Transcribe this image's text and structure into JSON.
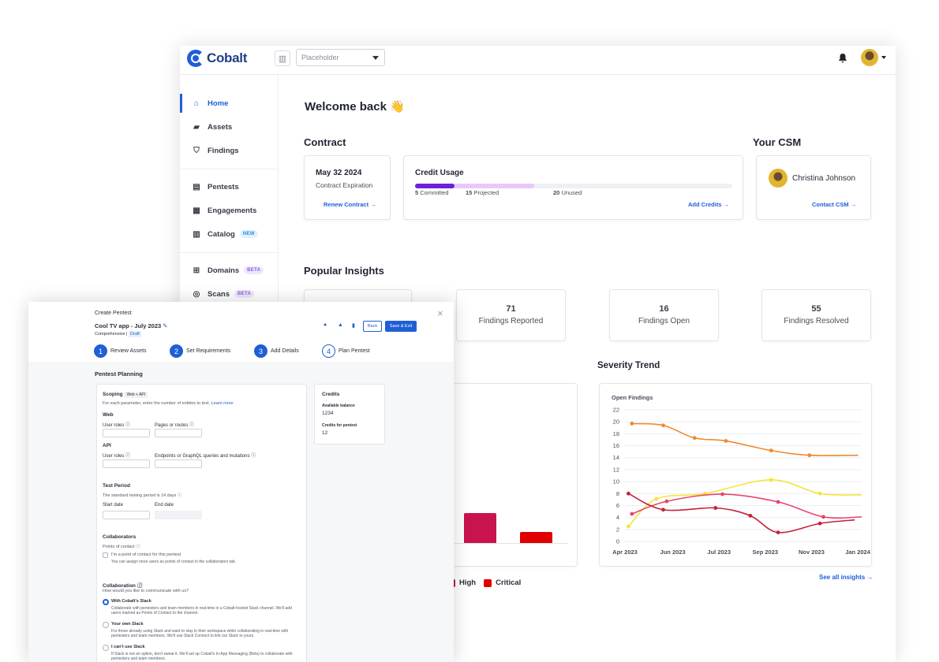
{
  "topbar": {
    "logo_text": "Cobalt",
    "org_placeholder": "Placeholder",
    "bell_icon": "bell-icon"
  },
  "sidebar": {
    "items": [
      {
        "label": "Home",
        "icon": "home-icon",
        "active": true
      },
      {
        "label": "Assets",
        "icon": "folder-icon"
      },
      {
        "label": "Findings",
        "icon": "shield-icon"
      },
      {
        "label": "Pentests",
        "icon": "pentest-icon"
      },
      {
        "label": "Engagements",
        "icon": "engagements-icon"
      },
      {
        "label": "Catalog",
        "icon": "book-icon",
        "badge": "NEW"
      },
      {
        "label": "Domains",
        "icon": "sitemap-icon",
        "badge": "BETA"
      },
      {
        "label": "Scans",
        "icon": "scan-icon",
        "badge": "BETA"
      }
    ]
  },
  "main": {
    "welcome": "Welcome back 👋",
    "contract": {
      "heading": "Contract",
      "date": "May 32 2024",
      "date_label": "Contract Expiration",
      "renew_link": "Renew Contract →"
    },
    "credit_usage": {
      "title": "Credit Usage",
      "committed_num": "5",
      "committed_label": "Committed",
      "projected_num": "15",
      "projected_label": "Projected",
      "unused_num": "20",
      "unused_label": "Unused",
      "add_link": "Add Credits →",
      "committed_fraction": 0.125,
      "projected_fraction": 0.25
    },
    "csm": {
      "heading": "Your CSM",
      "name": "Christina Johnson",
      "contact_link": "Contact CSM →"
    },
    "insights": {
      "heading": "Popular Insights",
      "cards": [
        {
          "value": "71",
          "label": "Findings Reported"
        },
        {
          "value": "16",
          "label": "Findings Open"
        },
        {
          "value": "55",
          "label": "Findings Resolved"
        }
      ],
      "see_all": "See all insights →"
    },
    "severity_legend": {
      "high": "High",
      "critical": "Critical"
    },
    "severity_trend": {
      "heading": "Severity Trend"
    }
  },
  "chart_data": {
    "type": "line",
    "title": "Open Findings",
    "x": [
      "Apr 2023",
      "Jun 2023",
      "Jul 2023",
      "Sep 2023",
      "Nov 2023",
      "Jan 2024"
    ],
    "ylim": [
      0,
      22
    ],
    "yticks": [
      0,
      2,
      4,
      6,
      8,
      10,
      12,
      14,
      16,
      18,
      20,
      22
    ],
    "grid": true,
    "series": [
      {
        "color": "#f0892e",
        "points": [
          [
            0.2,
            19.7
          ],
          [
            1.1,
            19.4
          ],
          [
            2.0,
            17.3
          ],
          [
            2.9,
            16.8
          ],
          [
            4.2,
            15.2
          ],
          [
            5.3,
            14.4
          ],
          [
            6.7,
            14.4
          ]
        ]
      },
      {
        "color": "#f4e43a",
        "points": [
          [
            0.1,
            2.5
          ],
          [
            0.9,
            7.1
          ],
          [
            2.3,
            8.0
          ],
          [
            4.2,
            10.3
          ],
          [
            5.6,
            8.0
          ],
          [
            6.8,
            7.8
          ]
        ]
      },
      {
        "color": "#e8436c",
        "points": [
          [
            0.2,
            4.6
          ],
          [
            1.2,
            6.7
          ],
          [
            2.8,
            7.9
          ],
          [
            4.4,
            6.6
          ],
          [
            5.7,
            4.1
          ],
          [
            6.8,
            4.1
          ]
        ]
      },
      {
        "color": "#c2223b",
        "points": [
          [
            0.1,
            8.0
          ],
          [
            1.1,
            5.3
          ],
          [
            2.6,
            5.6
          ],
          [
            3.6,
            4.3
          ],
          [
            4.4,
            1.5
          ],
          [
            5.6,
            3.0
          ],
          [
            6.6,
            3.6
          ]
        ]
      }
    ]
  },
  "modal": {
    "title": "Create Pentest",
    "name": "Cool TV app - July 2023",
    "tags": [
      "Comprehensive",
      "Draft"
    ],
    "back": "Back",
    "save": "Save & Exit",
    "steps": [
      {
        "n": "1",
        "label": "Review Assets"
      },
      {
        "n": "2",
        "label": "Set Requirements"
      },
      {
        "n": "3",
        "label": "Add Details"
      },
      {
        "n": "4",
        "label": "Plan Pentest"
      }
    ],
    "planning": "Pentest Planning",
    "scoping": {
      "title": "Scoping",
      "tag": "Web + API",
      "desc": "For each parameter, enter the number of entities to test.",
      "learn": "Learn more"
    },
    "web": {
      "title": "Web",
      "f1": "User roles ⓘ",
      "f2": "Pages or routes ⓘ"
    },
    "api": {
      "title": "API",
      "f1": "User roles ⓘ",
      "f2": "Endpoints or GraphQL queries and mutations ⓘ"
    },
    "test_period": {
      "title": "Test Period",
      "desc": "The standard testing period is 14 days ⓘ",
      "start": "Start date",
      "end": "End date"
    },
    "collaborators": {
      "title": "Collaborators",
      "sub": "Points of contact ⓘ",
      "check": "I'm a point of contact for this pentest",
      "note": "You can assign more users as points of contact in the collaborators tab."
    },
    "collaboration": {
      "title": "Collaboration ⓘ",
      "sub": "How would you like to communicate with us?",
      "options": [
        {
          "label": "With Cobalt's Slack",
          "desc": "Collaborate with pentesters and team members in real-time in a Cobalt-hosted Slack channel. We'll add users marked as Points of Contact to the channel."
        },
        {
          "label": "Your own Slack",
          "desc": "For those already using Slack and want to stay in their workspace while collaborating in real-time with pentesters and team members. We'll use Slack Connect to link our Slack to yours."
        },
        {
          "label": "I can't use Slack",
          "desc": "If Slack is not an option, don't sweat it. We'll set up Cobalt's In-App Messaging (Beta) to collaborate with pentesters and team members."
        }
      ]
    },
    "credits": {
      "title": "Credits",
      "balance_label": "Available balance",
      "balance": "1234",
      "pentest_label": "Credits for pentest",
      "pentest": "12"
    }
  }
}
